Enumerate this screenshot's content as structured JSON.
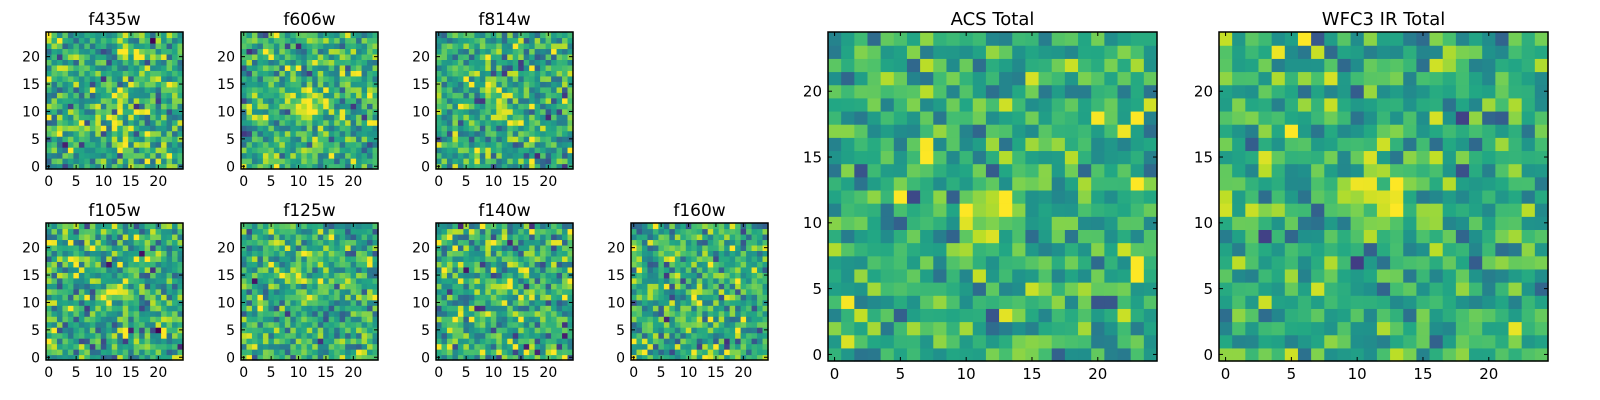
{
  "colors": {
    "colormap": "viridis",
    "frame": "#000000",
    "background": "#ffffff"
  },
  "chart_data": [
    {
      "type": "heatmap",
      "title": "f435w",
      "grid_size": 25,
      "xlim": [
        -0.5,
        24.5
      ],
      "ylim": [
        -0.5,
        24.5
      ],
      "xticks": [
        0,
        5,
        10,
        15,
        20
      ],
      "yticks": [
        0,
        5,
        10,
        15,
        20
      ],
      "source_center": [
        12,
        11
      ],
      "source_amplitude": 0.18,
      "noise_level": 0.34,
      "seed": 11,
      "value_range": [
        0,
        1
      ]
    },
    {
      "type": "heatmap",
      "title": "f606w",
      "grid_size": 25,
      "xlim": [
        -0.5,
        24.5
      ],
      "ylim": [
        -0.5,
        24.5
      ],
      "xticks": [
        0,
        5,
        10,
        15,
        20
      ],
      "yticks": [
        0,
        5,
        10,
        15,
        20
      ],
      "source_center": [
        12,
        11
      ],
      "source_amplitude": 0.35,
      "noise_level": 0.32,
      "seed": 23,
      "value_range": [
        0,
        1
      ]
    },
    {
      "type": "heatmap",
      "title": "f814w",
      "grid_size": 25,
      "xlim": [
        -0.5,
        24.5
      ],
      "ylim": [
        -0.5,
        24.5
      ],
      "xticks": [
        0,
        5,
        10,
        15,
        20
      ],
      "yticks": [
        0,
        5,
        10,
        15,
        20
      ],
      "source_center": [
        11,
        11
      ],
      "source_amplitude": 0.25,
      "noise_level": 0.33,
      "seed": 37,
      "value_range": [
        0,
        1
      ]
    },
    {
      "type": "heatmap",
      "title": "f105w",
      "grid_size": 25,
      "xlim": [
        -0.5,
        24.5
      ],
      "ylim": [
        -0.5,
        24.5
      ],
      "xticks": [
        0,
        5,
        10,
        15,
        20
      ],
      "yticks": [
        0,
        5,
        10,
        15,
        20
      ],
      "source_center": [
        12,
        12
      ],
      "source_amplitude": 0.3,
      "noise_level": 0.36,
      "seed": 41,
      "value_range": [
        0,
        1
      ]
    },
    {
      "type": "heatmap",
      "title": "f125w",
      "grid_size": 25,
      "xlim": [
        -0.5,
        24.5
      ],
      "ylim": [
        -0.5,
        24.5
      ],
      "xticks": [
        0,
        5,
        10,
        15,
        20
      ],
      "yticks": [
        0,
        5,
        10,
        15,
        20
      ],
      "source_center": [
        12,
        12
      ],
      "source_amplitude": 0.2,
      "noise_level": 0.3,
      "seed": 53,
      "value_range": [
        0,
        1
      ]
    },
    {
      "type": "heatmap",
      "title": "f140w",
      "grid_size": 25,
      "xlim": [
        -0.5,
        24.5
      ],
      "ylim": [
        -0.5,
        24.5
      ],
      "xticks": [
        0,
        5,
        10,
        15,
        20
      ],
      "yticks": [
        0,
        5,
        10,
        15,
        20
      ],
      "source_center": [
        12,
        12
      ],
      "source_amplitude": 0.2,
      "noise_level": 0.36,
      "seed": 67,
      "value_range": [
        0,
        1
      ]
    },
    {
      "type": "heatmap",
      "title": "f160w",
      "grid_size": 25,
      "xlim": [
        -0.5,
        24.5
      ],
      "ylim": [
        -0.5,
        24.5
      ],
      "xticks": [
        0,
        5,
        10,
        15,
        20
      ],
      "yticks": [
        0,
        5,
        10,
        15,
        20
      ],
      "source_center": [
        12,
        12
      ],
      "source_amplitude": 0.2,
      "noise_level": 0.34,
      "seed": 79,
      "value_range": [
        0,
        1
      ]
    },
    {
      "type": "heatmap",
      "title": "ACS Total",
      "grid_size": 25,
      "xlim": [
        -0.5,
        24.5
      ],
      "ylim": [
        -0.5,
        24.5
      ],
      "xticks": [
        0,
        5,
        10,
        15,
        20
      ],
      "yticks": [
        0,
        5,
        10,
        15,
        20
      ],
      "source_center": [
        12,
        11
      ],
      "source_amplitude": 0.38,
      "noise_level": 0.28,
      "seed": 97,
      "value_range": [
        0,
        1
      ]
    },
    {
      "type": "heatmap",
      "title": "WFC3 IR Total",
      "grid_size": 25,
      "xlim": [
        -0.5,
        24.5
      ],
      "ylim": [
        -0.5,
        24.5
      ],
      "xticks": [
        0,
        5,
        10,
        15,
        20
      ],
      "yticks": [
        0,
        5,
        10,
        15,
        20
      ],
      "source_center": [
        12,
        12
      ],
      "source_amplitude": 0.3,
      "noise_level": 0.26,
      "seed": 103,
      "value_range": [
        0,
        1
      ]
    }
  ]
}
